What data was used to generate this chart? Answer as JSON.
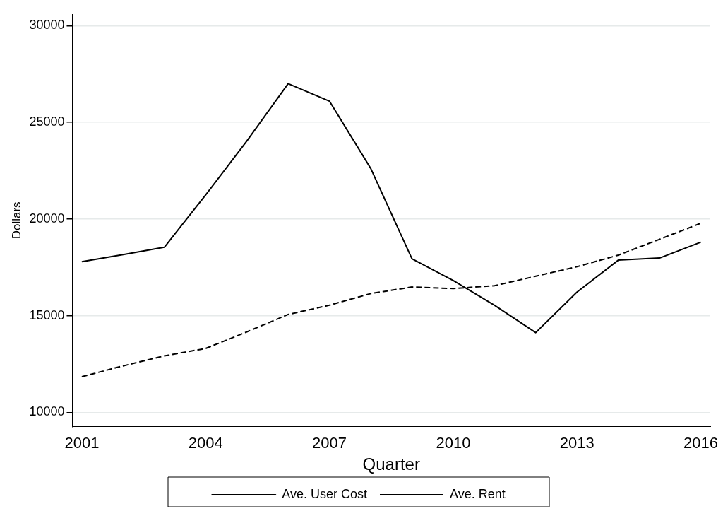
{
  "chart_data": {
    "type": "line",
    "xlabel": "Quarter",
    "ylabel": "Dollars",
    "x": [
      2001,
      2002,
      2003,
      2004,
      2005,
      2006,
      2007,
      2008,
      2009,
      2010,
      2011,
      2012,
      2013,
      2014,
      2015,
      2016
    ],
    "series": [
      {
        "name": "Ave. User Cost",
        "color": "#000000",
        "line_style": "solid",
        "values": [
          17790,
          18160,
          18540,
          21240,
          24040,
          27000,
          26100,
          22620,
          17940,
          16820,
          15540,
          14120,
          16220,
          17870,
          17980,
          18800
        ]
      },
      {
        "name": "Ave. Rent",
        "color": "#000000",
        "line_style": "dashed",
        "values": [
          11840,
          12400,
          12920,
          13300,
          14160,
          15060,
          15540,
          16140,
          16480,
          16400,
          16550,
          17040,
          17530,
          18130,
          18950,
          19780
        ]
      }
    ],
    "xlim": [
      2000.77,
      2016.23
    ],
    "xticks": [
      2001,
      2004,
      2007,
      2010,
      2013,
      2016
    ],
    "ylim": [
      9250,
      30600
    ],
    "yticks": [
      10000,
      15000,
      20000,
      25000,
      30000
    ],
    "grid": "y",
    "legend": "bottom",
    "marker": "none"
  }
}
